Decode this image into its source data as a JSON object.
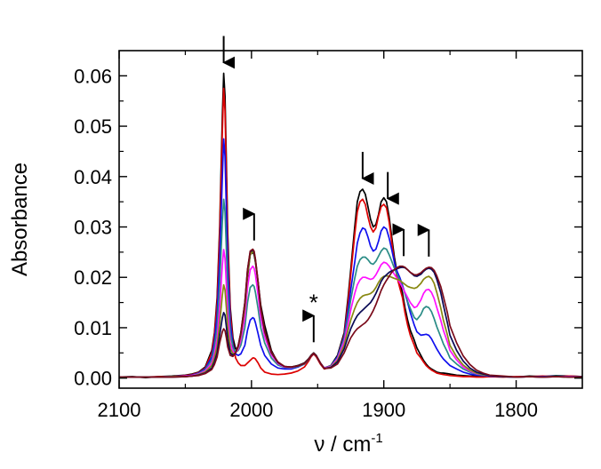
{
  "chart_data": {
    "type": "line",
    "title": "",
    "xlabel": "ν / cm",
    "xlabel_sup": "-1",
    "ylabel": "Absorbance",
    "xlim": [
      2100,
      1750
    ],
    "ylim": [
      -0.002,
      0.065
    ],
    "x_reversed": true,
    "x_ticks": [
      2100,
      2000,
      1900,
      1800
    ],
    "x_ticks_minor": [
      2050,
      1950,
      1850
    ],
    "y_ticks": [
      0.0,
      0.01,
      0.02,
      0.03,
      0.04,
      0.05,
      0.06
    ],
    "y_tick_labels": [
      "0.00",
      "0.01",
      "0.02",
      "0.03",
      "0.04",
      "0.05",
      "0.06"
    ],
    "grid": false,
    "legend": "none",
    "x": [
      2100,
      2090,
      2080,
      2070,
      2060,
      2050,
      2045,
      2040,
      2035,
      2030,
      2028,
      2026,
      2024,
      2022,
      2021,
      2020,
      2019,
      2018,
      2016,
      2014,
      2012,
      2010,
      2008,
      2005,
      2003,
      2001,
      1999,
      1998,
      1997,
      1995,
      1993,
      1990,
      1985,
      1980,
      1975,
      1970,
      1965,
      1960,
      1957,
      1955,
      1953,
      1951,
      1948,
      1945,
      1940,
      1935,
      1930,
      1927,
      1925,
      1922,
      1920,
      1918,
      1916,
      1914,
      1912,
      1910,
      1908,
      1906,
      1904,
      1902,
      1900,
      1898,
      1896,
      1894,
      1892,
      1890,
      1888,
      1886,
      1884,
      1882,
      1880,
      1877,
      1875,
      1872,
      1870,
      1868,
      1866,
      1864,
      1862,
      1860,
      1857,
      1855,
      1852,
      1850,
      1845,
      1840,
      1835,
      1830,
      1825,
      1820,
      1810,
      1800,
      1790,
      1780,
      1770,
      1760,
      1750
    ],
    "series": [
      {
        "color": "#000000",
        "values": [
          0.0002,
          0.0003,
          0.0001,
          0.0003,
          0.0004,
          0.0006,
          0.0008,
          0.0012,
          0.0022,
          0.0055,
          0.009,
          0.016,
          0.03,
          0.052,
          0.0605,
          0.056,
          0.043,
          0.029,
          0.014,
          0.008,
          0.0058,
          0.006,
          0.0075,
          0.0135,
          0.02,
          0.0245,
          0.025,
          0.0245,
          0.023,
          0.019,
          0.0145,
          0.0105,
          0.0055,
          0.003,
          0.0022,
          0.0022,
          0.0025,
          0.003,
          0.0038,
          0.0045,
          0.005,
          0.0045,
          0.003,
          0.002,
          0.0025,
          0.0045,
          0.009,
          0.016,
          0.0215,
          0.03,
          0.035,
          0.037,
          0.0375,
          0.0365,
          0.034,
          0.0315,
          0.03,
          0.0305,
          0.0325,
          0.035,
          0.0358,
          0.035,
          0.032,
          0.028,
          0.024,
          0.021,
          0.019,
          0.017,
          0.014,
          0.0115,
          0.0095,
          0.0075,
          0.006,
          0.0045,
          0.0035,
          0.0028,
          0.0022,
          0.0018,
          0.0015,
          0.0012,
          0.001,
          0.001,
          0.0009,
          0.0008,
          0.0006,
          0.0005,
          0.0004,
          0.0004,
          0.0003,
          0.0003,
          0.0003,
          0.0002,
          0.0004,
          0.0003,
          0.0005,
          0.0004,
          0.0003
        ]
      },
      {
        "color": "#dd0000",
        "values": [
          0.0002,
          0.0002,
          0.0002,
          0.0003,
          0.0003,
          0.0005,
          0.0007,
          0.0011,
          0.002,
          0.005,
          0.0085,
          0.015,
          0.0285,
          0.049,
          0.0575,
          0.053,
          0.0405,
          0.027,
          0.013,
          0.007,
          0.004,
          0.003,
          0.0025,
          0.0025,
          0.003,
          0.0035,
          0.004,
          0.004,
          0.0038,
          0.003,
          0.002,
          0.0012,
          0.0008,
          0.0007,
          0.0008,
          0.001,
          0.0014,
          0.0022,
          0.0033,
          0.0042,
          0.0048,
          0.0042,
          0.0028,
          0.0018,
          0.0022,
          0.0042,
          0.0085,
          0.015,
          0.0205,
          0.0285,
          0.033,
          0.035,
          0.0355,
          0.0345,
          0.032,
          0.03,
          0.029,
          0.0298,
          0.0322,
          0.034,
          0.0345,
          0.0338,
          0.031,
          0.027,
          0.023,
          0.02,
          0.018,
          0.016,
          0.013,
          0.0105,
          0.0085,
          0.0065,
          0.005,
          0.004,
          0.0032,
          0.0025,
          0.002,
          0.0016,
          0.0013,
          0.001,
          0.0008,
          0.0007,
          0.0006,
          0.0005,
          0.0004,
          0.0003,
          0.0003,
          0.0002,
          0.0002,
          0.0003,
          0.0002,
          0.0003,
          0.0003,
          0.0004,
          0.0003,
          0.0004,
          0.0003
        ]
      },
      {
        "color": "#1010ee",
        "values": [
          0.0002,
          0.0002,
          0.0002,
          0.0002,
          0.0003,
          0.0004,
          0.0006,
          0.001,
          0.0018,
          0.0042,
          0.0072,
          0.0125,
          0.0235,
          0.04,
          0.0475,
          0.044,
          0.0335,
          0.0225,
          0.011,
          0.0065,
          0.0048,
          0.0045,
          0.0048,
          0.0065,
          0.0095,
          0.0115,
          0.012,
          0.0118,
          0.011,
          0.0088,
          0.0065,
          0.0045,
          0.0028,
          0.002,
          0.0018,
          0.0018,
          0.0022,
          0.0028,
          0.0036,
          0.0044,
          0.0049,
          0.0044,
          0.003,
          0.002,
          0.0024,
          0.0042,
          0.0082,
          0.0135,
          0.0175,
          0.023,
          0.0268,
          0.0288,
          0.0298,
          0.0295,
          0.028,
          0.0262,
          0.0252,
          0.0256,
          0.0272,
          0.0292,
          0.03,
          0.0296,
          0.0278,
          0.0255,
          0.023,
          0.0212,
          0.02,
          0.0185,
          0.0168,
          0.015,
          0.013,
          0.0105,
          0.0092,
          0.0085,
          0.0086,
          0.0087,
          0.0085,
          0.0078,
          0.0068,
          0.0058,
          0.0045,
          0.0038,
          0.003,
          0.0025,
          0.0018,
          0.0012,
          0.0008,
          0.0006,
          0.0005,
          0.0004,
          0.0003,
          0.0002,
          0.0003,
          0.0003,
          0.0004,
          0.0003,
          0.0003
        ]
      },
      {
        "color": "#2a8c86",
        "values": [
          0.0002,
          0.0002,
          0.0002,
          0.0002,
          0.0003,
          0.0004,
          0.0005,
          0.0009,
          0.0016,
          0.0036,
          0.006,
          0.01,
          0.0185,
          0.031,
          0.0355,
          0.033,
          0.0255,
          0.0175,
          0.009,
          0.006,
          0.0052,
          0.0055,
          0.0065,
          0.01,
          0.015,
          0.018,
          0.0185,
          0.0182,
          0.017,
          0.0138,
          0.01,
          0.007,
          0.004,
          0.0026,
          0.0021,
          0.002,
          0.0023,
          0.0028,
          0.0036,
          0.0044,
          0.0049,
          0.0044,
          0.003,
          0.002,
          0.0024,
          0.004,
          0.0078,
          0.0122,
          0.0155,
          0.0198,
          0.0222,
          0.0235,
          0.024,
          0.024,
          0.0235,
          0.0228,
          0.0226,
          0.0232,
          0.0242,
          0.0252,
          0.0258,
          0.0256,
          0.0245,
          0.0232,
          0.0218,
          0.0206,
          0.0195,
          0.0182,
          0.0168,
          0.0152,
          0.0138,
          0.012,
          0.0116,
          0.0126,
          0.0138,
          0.0142,
          0.014,
          0.0132,
          0.0118,
          0.0102,
          0.0082,
          0.0068,
          0.0052,
          0.004,
          0.0028,
          0.0018,
          0.0012,
          0.0008,
          0.0006,
          0.0005,
          0.0003,
          0.0002,
          0.0003,
          0.0002,
          0.0004,
          0.0003,
          0.0003
        ]
      },
      {
        "color": "#ff10ff",
        "values": [
          0.0002,
          0.0002,
          0.0002,
          0.0002,
          0.0003,
          0.0004,
          0.0005,
          0.0008,
          0.0014,
          0.003,
          0.0048,
          0.0078,
          0.014,
          0.0225,
          0.0255,
          0.0238,
          0.0185,
          0.013,
          0.007,
          0.0052,
          0.005,
          0.0058,
          0.0075,
          0.012,
          0.018,
          0.0215,
          0.0222,
          0.0218,
          0.0205,
          0.0165,
          0.012,
          0.0082,
          0.0046,
          0.0029,
          0.0022,
          0.0021,
          0.0024,
          0.0029,
          0.0037,
          0.0044,
          0.0049,
          0.0044,
          0.003,
          0.002,
          0.0023,
          0.0038,
          0.0072,
          0.0108,
          0.0135,
          0.0168,
          0.0185,
          0.0195,
          0.02,
          0.02,
          0.0198,
          0.0196,
          0.0198,
          0.0205,
          0.0215,
          0.0225,
          0.023,
          0.0228,
          0.0222,
          0.0214,
          0.0206,
          0.0198,
          0.019,
          0.018,
          0.017,
          0.016,
          0.015,
          0.014,
          0.0142,
          0.0155,
          0.0168,
          0.0175,
          0.0176,
          0.017,
          0.0158,
          0.014,
          0.0115,
          0.0095,
          0.0072,
          0.0055,
          0.0036,
          0.0022,
          0.0014,
          0.0009,
          0.0007,
          0.0005,
          0.0003,
          0.0002,
          0.0003,
          0.0002,
          0.0003,
          0.0003,
          0.0003
        ]
      },
      {
        "color": "#888810",
        "values": [
          0.0002,
          0.0002,
          0.0002,
          0.0002,
          0.0003,
          0.0003,
          0.0004,
          0.0007,
          0.0012,
          0.0025,
          0.004,
          0.0062,
          0.0108,
          0.0165,
          0.0185,
          0.0175,
          0.014,
          0.01,
          0.0058,
          0.0048,
          0.005,
          0.0062,
          0.0085,
          0.014,
          0.0205,
          0.0245,
          0.0252,
          0.0248,
          0.0232,
          0.0188,
          0.0136,
          0.0092,
          0.005,
          0.0031,
          0.0023,
          0.0022,
          0.0024,
          0.0029,
          0.0037,
          0.0044,
          0.0049,
          0.0044,
          0.003,
          0.0019,
          0.0022,
          0.0035,
          0.0065,
          0.0095,
          0.0115,
          0.0138,
          0.015,
          0.0158,
          0.0163,
          0.0165,
          0.0166,
          0.0168,
          0.0172,
          0.018,
          0.019,
          0.0198,
          0.0202,
          0.0203,
          0.0202,
          0.02,
          0.0198,
          0.0196,
          0.0194,
          0.019,
          0.0186,
          0.0182,
          0.018,
          0.0178,
          0.018,
          0.0188,
          0.0196,
          0.02,
          0.0202,
          0.0198,
          0.0188,
          0.017,
          0.014,
          0.0115,
          0.0086,
          0.0065,
          0.0042,
          0.0026,
          0.0016,
          0.001,
          0.0007,
          0.0005,
          0.0003,
          0.0002,
          0.0003,
          0.0002,
          0.0003,
          0.0002,
          0.0003
        ]
      },
      {
        "color": "#0a0a55",
        "values": [
          0.0002,
          0.0002,
          0.0002,
          0.0002,
          0.0002,
          0.0003,
          0.0004,
          0.0006,
          0.001,
          0.002,
          0.0032,
          0.005,
          0.0085,
          0.012,
          0.013,
          0.0125,
          0.0102,
          0.0076,
          0.005,
          0.0045,
          0.005,
          0.0065,
          0.009,
          0.015,
          0.0215,
          0.025,
          0.0255,
          0.025,
          0.0235,
          0.019,
          0.0138,
          0.0093,
          0.0051,
          0.0031,
          0.0023,
          0.0022,
          0.0024,
          0.0029,
          0.0037,
          0.0044,
          0.0049,
          0.0044,
          0.003,
          0.0019,
          0.0021,
          0.0032,
          0.0058,
          0.0082,
          0.0098,
          0.0115,
          0.0124,
          0.013,
          0.0135,
          0.014,
          0.0145,
          0.015,
          0.0158,
          0.0168,
          0.018,
          0.0192,
          0.02,
          0.0205,
          0.021,
          0.0213,
          0.0215,
          0.0217,
          0.0219,
          0.022,
          0.0219,
          0.0215,
          0.021,
          0.0203,
          0.0202,
          0.0206,
          0.0212,
          0.0216,
          0.0218,
          0.0216,
          0.021,
          0.0196,
          0.017,
          0.0145,
          0.011,
          0.0085,
          0.0055,
          0.0034,
          0.002,
          0.0012,
          0.0008,
          0.0005,
          0.0003,
          0.0002,
          0.0003,
          0.0002,
          0.0003,
          0.0002,
          0.0003
        ]
      },
      {
        "color": "#7a0a1a",
        "values": [
          0.0002,
          0.0002,
          0.0002,
          0.0002,
          0.0002,
          0.0003,
          0.0004,
          0.0005,
          0.0009,
          0.0017,
          0.0027,
          0.0042,
          0.007,
          0.0092,
          0.0098,
          0.0094,
          0.008,
          0.0062,
          0.0045,
          0.0043,
          0.005,
          0.0065,
          0.009,
          0.015,
          0.0215,
          0.0252,
          0.0256,
          0.0252,
          0.0236,
          0.0192,
          0.014,
          0.0094,
          0.0052,
          0.0032,
          0.0023,
          0.0022,
          0.0024,
          0.0029,
          0.0037,
          0.0044,
          0.0049,
          0.0044,
          0.003,
          0.0019,
          0.002,
          0.0028,
          0.005,
          0.0068,
          0.008,
          0.0092,
          0.0098,
          0.0102,
          0.0106,
          0.011,
          0.0116,
          0.0124,
          0.0134,
          0.0146,
          0.016,
          0.0174,
          0.0185,
          0.0194,
          0.0202,
          0.021,
          0.0215,
          0.0219,
          0.0222,
          0.0222,
          0.022,
          0.0215,
          0.021,
          0.0205,
          0.0205,
          0.0209,
          0.0214,
          0.0218,
          0.022,
          0.0219,
          0.0214,
          0.0203,
          0.0182,
          0.0162,
          0.013,
          0.0104,
          0.007,
          0.0044,
          0.0027,
          0.0016,
          0.001,
          0.0006,
          0.0004,
          0.0002,
          0.0003,
          0.0002,
          0.0003,
          0.0002,
          0.0002
        ]
      }
    ],
    "annotations": [
      {
        "type": "arrow-down",
        "x": 2021
      },
      {
        "type": "arrow-up",
        "x": 1998
      },
      {
        "type": "arrow-up",
        "x": 1953,
        "label": "*"
      },
      {
        "type": "arrow-down",
        "x": 1916
      },
      {
        "type": "arrow-down",
        "x": 1897
      },
      {
        "type": "arrow-up",
        "x": 1885
      },
      {
        "type": "arrow-up",
        "x": 1866
      }
    ]
  }
}
